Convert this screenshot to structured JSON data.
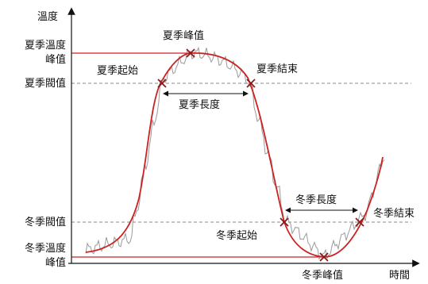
{
  "axes": {
    "y_label": "溫度",
    "x_label": "時間"
  },
  "levels": {
    "summer_peak_line1": "夏季溫度",
    "summer_peak_line2": "峰值",
    "summer_threshold": "夏季閥值",
    "winter_threshold": "冬季閥值",
    "winter_peak_line1": "冬季溫度",
    "winter_peak_line2": "峰值"
  },
  "annotations": {
    "summer_peak": "夏季峰值",
    "summer_start": "夏季起始",
    "summer_end": "夏季結束",
    "summer_length": "夏季長度",
    "winter_length": "冬季長度",
    "winter_start": "冬季起始",
    "winter_end": "冬季結束",
    "winter_peak": "冬季峰值"
  },
  "colors": {
    "smooth_curve": "#cc2222",
    "raw_signal": "#999999",
    "axis": "#111111",
    "threshold_line": "#888888",
    "peak_line": "#cc2222",
    "marker": "#8b1a1a"
  }
}
